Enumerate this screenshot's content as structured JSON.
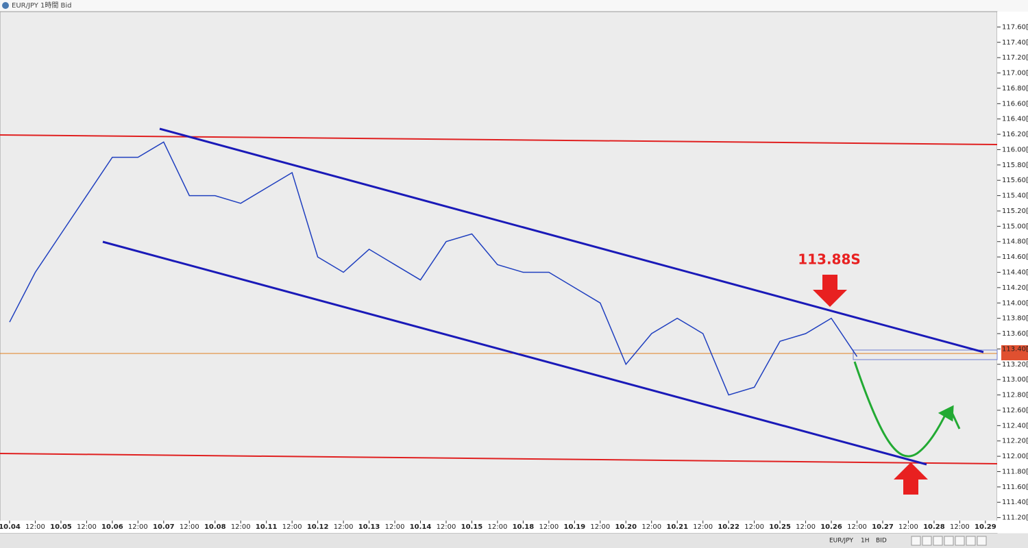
{
  "window_title": "EUR/JPY 1時間 Bid",
  "annotation": "113.88S",
  "toolbar": {
    "symbol": "EUR/JPY",
    "timeframe": "1H",
    "price_type": "BID"
  },
  "chart_data": {
    "type": "line",
    "color": "#1f3fbf",
    "categories": [
      "10.04",
      "12:00",
      "10.05",
      "12:00",
      "10.06",
      "12:00",
      "10.07",
      "12:00",
      "10.08",
      "12:00",
      "10.11",
      "12:00",
      "10.12",
      "12:00",
      "10.13",
      "12:00",
      "10.14",
      "12:00",
      "10.15",
      "12:00",
      "10.18",
      "12:00",
      "10.19",
      "12:00",
      "10.20",
      "12:00",
      "10.21",
      "12:00",
      "10.22",
      "12:00",
      "10.25",
      "12:00",
      "10.26",
      "12:00",
      "10.27",
      "12:00",
      "10.28",
      "12:00",
      "10.29"
    ],
    "values": [
      113.75,
      114.4,
      114.9,
      115.4,
      115.9,
      115.9,
      116.1,
      115.4,
      115.4,
      115.3,
      115.5,
      115.7,
      114.6,
      114.4,
      114.7,
      114.5,
      114.3,
      114.8,
      114.9,
      114.5,
      114.4,
      114.4,
      114.2,
      114.0,
      113.2,
      113.6,
      113.8,
      113.6,
      112.8,
      112.9,
      113.5,
      113.6,
      113.8,
      113.3,
      null,
      null,
      null,
      null,
      null
    ],
    "ylim": [
      111.0,
      117.8
    ],
    "yticks": [
      {
        "value": 117.6,
        "label": "117.60[0"
      },
      {
        "value": 117.4,
        "label": "117.40[0"
      },
      {
        "value": 117.2,
        "label": "117.20[0"
      },
      {
        "value": 117.0,
        "label": "117.00[0"
      },
      {
        "value": 116.8,
        "label": "116.80[0"
      },
      {
        "value": 116.6,
        "label": "116.60[0"
      },
      {
        "value": 116.4,
        "label": "116.40[0"
      },
      {
        "value": 116.2,
        "label": "116.20[0"
      },
      {
        "value": 116.0,
        "label": "116.00[0"
      },
      {
        "value": 115.8,
        "label": "115.80[0"
      },
      {
        "value": 115.6,
        "label": "115.60[0"
      },
      {
        "value": 115.4,
        "label": "115.40[0"
      },
      {
        "value": 115.2,
        "label": "115.20[0"
      },
      {
        "value": 115.0,
        "label": "115.00[0"
      },
      {
        "value": 114.8,
        "label": "114.80[0"
      },
      {
        "value": 114.6,
        "label": "114.60[0"
      },
      {
        "value": 114.4,
        "label": "114.40[0"
      },
      {
        "value": 114.2,
        "label": "114.20[0"
      },
      {
        "value": 114.0,
        "label": "114.00[0"
      },
      {
        "value": 113.8,
        "label": "113.80[0"
      },
      {
        "value": 113.6,
        "label": "113.60[0"
      },
      {
        "value": 113.4,
        "label": "113.40[0"
      },
      {
        "value": 113.2,
        "label": "113.20[0"
      },
      {
        "value": 113.0,
        "label": "113.00[0"
      },
      {
        "value": 112.8,
        "label": "112.80[0"
      },
      {
        "value": 112.6,
        "label": "112.60[0"
      },
      {
        "value": 112.4,
        "label": "112.40[0"
      },
      {
        "value": 112.2,
        "label": "112.20[0"
      },
      {
        "value": 112.0,
        "label": "112.00[0"
      },
      {
        "value": 111.8,
        "label": "111.80[0"
      },
      {
        "value": 111.6,
        "label": "111.60[0"
      },
      {
        "value": 111.4,
        "label": "111.40[0"
      },
      {
        "value": 111.2,
        "label": "111.20[0"
      }
    ]
  }
}
